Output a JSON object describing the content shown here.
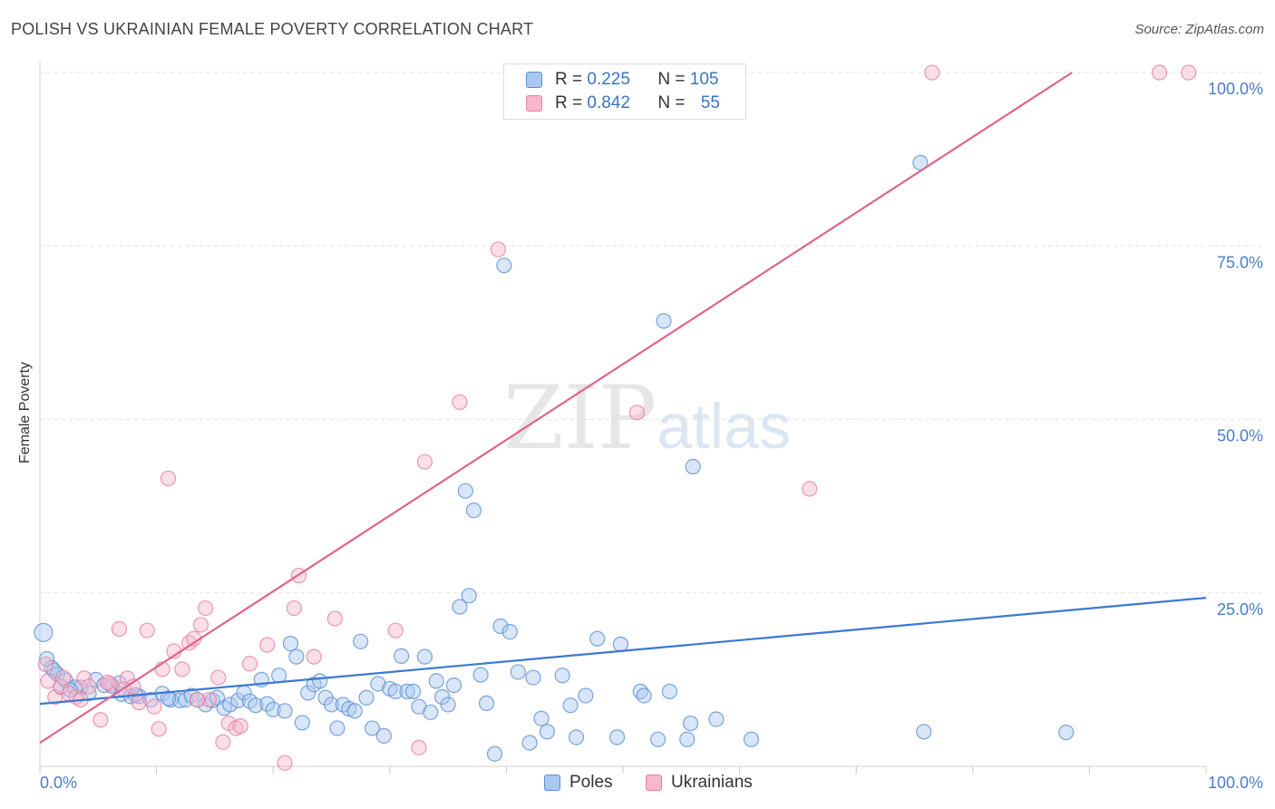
{
  "title": "POLISH VS UKRAINIAN FEMALE POVERTY CORRELATION CHART",
  "source": "Source: ZipAtlas.com",
  "watermark": {
    "zip": "ZIP",
    "atlas": "atlas"
  },
  "stats": [
    {
      "r_label": "R =",
      "r": "0.225",
      "n_label": "N =",
      "n": "105"
    },
    {
      "r_label": "R =",
      "r": "0.842",
      "n_label": "N =",
      "n": "55"
    }
  ],
  "legend": [
    {
      "label": "Poles"
    },
    {
      "label": "Ukrainians"
    }
  ],
  "colors": {
    "poles_fill": "#a9c8f0",
    "poles_stroke": "#5b8fd6",
    "poles_line": "#3a78d4",
    "ukr_fill": "#f7b8cb",
    "ukr_stroke": "#e97fa0",
    "ukr_line": "#e0638e",
    "grid": "#e3e3e3",
    "axis_tick_text": "#4a7cc9"
  },
  "chart_data": {
    "type": "scatter",
    "title": "POLISH VS UKRAINIAN FEMALE POVERTY CORRELATION CHART",
    "xlabel": "",
    "ylabel": "Female Poverty",
    "xlim": [
      0,
      100
    ],
    "ylim": [
      0,
      100
    ],
    "x_tick_labels": [
      "0.0%",
      "100.0%"
    ],
    "y_tick_labels": [
      "25.0%",
      "50.0%",
      "75.0%",
      "100.0%"
    ],
    "y_ticks": [
      25,
      50,
      75,
      100
    ],
    "grid": true,
    "legend_position": "bottom-center",
    "series": [
      {
        "name": "Poles",
        "trend": [
          [
            0,
            9.0
          ],
          [
            100,
            24.3
          ]
        ],
        "points": [
          [
            0.3,
            19.3
          ],
          [
            0.6,
            15.5
          ],
          [
            1.0,
            14.2
          ],
          [
            1.5,
            13.3
          ],
          [
            1.8,
            11.4
          ],
          [
            2.2,
            12.4
          ],
          [
            3.0,
            11.4
          ],
          [
            3.5,
            11.4
          ],
          [
            4.8,
            12.5
          ],
          [
            5.5,
            11.7
          ],
          [
            6.2,
            11.6
          ],
          [
            7.0,
            10.4
          ],
          [
            7.8,
            10.1
          ],
          [
            8.5,
            10.1
          ],
          [
            9.5,
            9.6
          ],
          [
            10.5,
            10.5
          ],
          [
            11.2,
            9.6
          ],
          [
            12.0,
            9.5
          ],
          [
            12.5,
            9.6
          ],
          [
            13.0,
            10.2
          ],
          [
            13.5,
            9.6
          ],
          [
            14.2,
            8.9
          ],
          [
            14.8,
            9.5
          ],
          [
            15.2,
            9.9
          ],
          [
            15.8,
            8.4
          ],
          [
            16.3,
            8.9
          ],
          [
            17.0,
            9.5
          ],
          [
            17.5,
            10.6
          ],
          [
            18.0,
            9.4
          ],
          [
            18.5,
            8.8
          ],
          [
            19.0,
            12.5
          ],
          [
            19.5,
            9.0
          ],
          [
            20.0,
            8.2
          ],
          [
            20.5,
            13.1
          ],
          [
            21.0,
            8.0
          ],
          [
            21.5,
            17.7
          ],
          [
            22.0,
            15.8
          ],
          [
            22.5,
            6.3
          ],
          [
            23.0,
            10.6
          ],
          [
            23.5,
            11.8
          ],
          [
            24.0,
            12.3
          ],
          [
            24.5,
            9.9
          ],
          [
            25.0,
            8.9
          ],
          [
            25.5,
            5.5
          ],
          [
            26.0,
            8.9
          ],
          [
            26.5,
            8.3
          ],
          [
            27.0,
            8.0
          ],
          [
            27.5,
            18.0
          ],
          [
            28.0,
            9.9
          ],
          [
            28.5,
            5.5
          ],
          [
            29.0,
            11.9
          ],
          [
            29.5,
            4.4
          ],
          [
            30.0,
            11.2
          ],
          [
            30.5,
            10.8
          ],
          [
            31.0,
            15.9
          ],
          [
            31.5,
            10.8
          ],
          [
            32.0,
            10.8
          ],
          [
            32.5,
            8.6
          ],
          [
            33.0,
            15.8
          ],
          [
            33.5,
            7.8
          ],
          [
            34.0,
            12.3
          ],
          [
            34.5,
            10.0
          ],
          [
            35.0,
            8.9
          ],
          [
            35.5,
            11.7
          ],
          [
            36.0,
            23.0
          ],
          [
            36.5,
            39.7
          ],
          [
            36.8,
            24.6
          ],
          [
            37.2,
            36.9
          ],
          [
            37.8,
            13.2
          ],
          [
            38.3,
            9.1
          ],
          [
            39.0,
            1.8
          ],
          [
            39.5,
            20.2
          ],
          [
            39.8,
            72.2
          ],
          [
            40.3,
            19.4
          ],
          [
            41.0,
            13.6
          ],
          [
            42.0,
            3.4
          ],
          [
            42.3,
            12.8
          ],
          [
            43.0,
            6.9
          ],
          [
            43.5,
            5.0
          ],
          [
            44.8,
            13.1
          ],
          [
            45.5,
            8.8
          ],
          [
            46.0,
            4.2
          ],
          [
            46.8,
            10.2
          ],
          [
            47.8,
            18.4
          ],
          [
            49.5,
            4.2
          ],
          [
            49.8,
            17.6
          ],
          [
            51.5,
            10.8
          ],
          [
            51.8,
            10.2
          ],
          [
            53.0,
            3.9
          ],
          [
            53.5,
            64.2
          ],
          [
            54.0,
            10.8
          ],
          [
            55.5,
            3.9
          ],
          [
            55.8,
            6.2
          ],
          [
            56.0,
            43.2
          ],
          [
            58.0,
            6.8
          ],
          [
            61.0,
            3.9
          ],
          [
            75.5,
            87.0
          ],
          [
            75.8,
            5.0
          ],
          [
            88.0,
            4.9
          ],
          [
            1.2,
            13.8
          ],
          [
            2.6,
            11.0
          ],
          [
            4.2,
            10.5
          ],
          [
            6.8,
            12.0
          ],
          [
            8.2,
            10.3
          ],
          [
            11.0,
            9.8
          ]
        ]
      },
      {
        "name": "Ukrainians",
        "trend": [
          [
            0,
            3.4
          ],
          [
            88.5,
            100
          ]
        ],
        "points": [
          [
            0.5,
            14.7
          ],
          [
            0.7,
            12.3
          ],
          [
            1.3,
            10.0
          ],
          [
            1.8,
            11.5
          ],
          [
            2.5,
            10.5
          ],
          [
            3.1,
            10.0
          ],
          [
            3.8,
            12.7
          ],
          [
            4.2,
            11.5
          ],
          [
            5.2,
            6.7
          ],
          [
            6.0,
            11.9
          ],
          [
            6.8,
            19.8
          ],
          [
            7.5,
            12.7
          ],
          [
            8.0,
            11.5
          ],
          [
            8.5,
            9.2
          ],
          [
            9.2,
            19.6
          ],
          [
            10.2,
            5.4
          ],
          [
            10.5,
            14.0
          ],
          [
            11.0,
            41.5
          ],
          [
            11.5,
            16.6
          ],
          [
            12.2,
            14.0
          ],
          [
            12.8,
            17.8
          ],
          [
            13.2,
            18.4
          ],
          [
            13.8,
            20.4
          ],
          [
            14.2,
            22.8
          ],
          [
            14.5,
            9.6
          ],
          [
            15.3,
            12.8
          ],
          [
            15.7,
            3.5
          ],
          [
            16.2,
            6.2
          ],
          [
            16.8,
            5.5
          ],
          [
            17.2,
            5.8
          ],
          [
            18.0,
            14.8
          ],
          [
            19.5,
            17.5
          ],
          [
            21.0,
            0.5
          ],
          [
            21.8,
            22.8
          ],
          [
            22.2,
            27.5
          ],
          [
            23.5,
            15.8
          ],
          [
            25.3,
            21.3
          ],
          [
            30.5,
            19.6
          ],
          [
            32.5,
            2.7
          ],
          [
            33.0,
            43.9
          ],
          [
            36.0,
            52.5
          ],
          [
            39.3,
            74.5
          ],
          [
            48.8,
            100
          ],
          [
            50.2,
            100
          ],
          [
            51.2,
            51.0
          ],
          [
            66.0,
            40.0
          ],
          [
            76.5,
            100
          ],
          [
            96.0,
            100
          ],
          [
            98.5,
            100
          ],
          [
            2.0,
            12.8
          ],
          [
            3.5,
            9.6
          ],
          [
            5.8,
            12.1
          ],
          [
            7.2,
            11.1
          ],
          [
            9.8,
            8.6
          ],
          [
            13.5,
            9.6
          ]
        ]
      }
    ]
  }
}
